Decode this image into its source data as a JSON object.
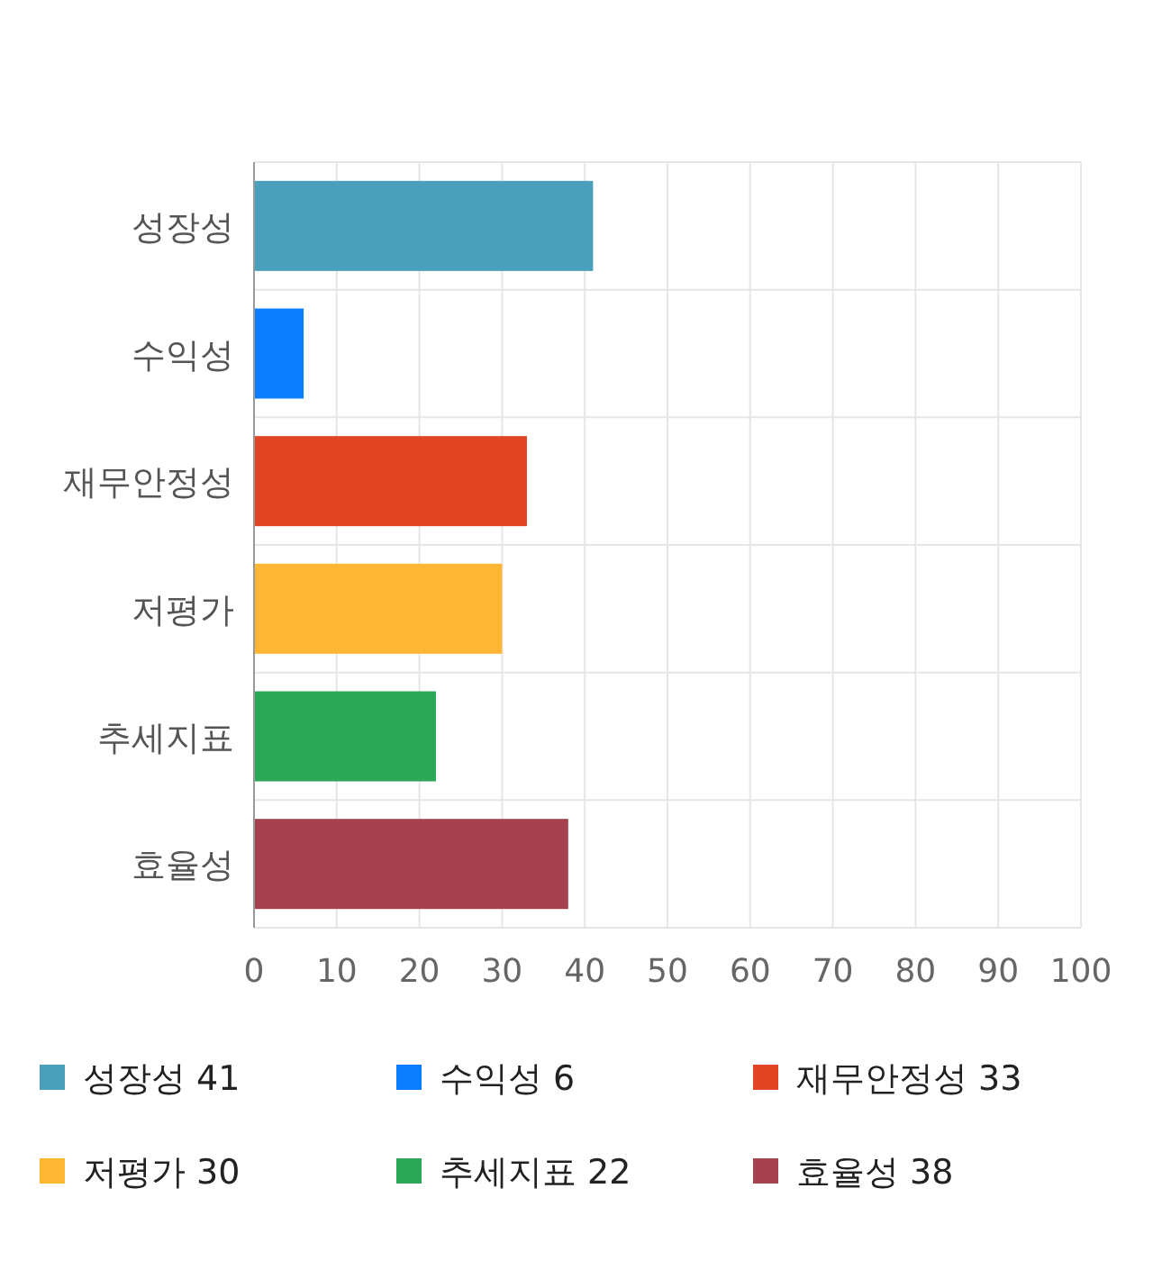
{
  "chart_data": {
    "type": "bar",
    "orientation": "horizontal",
    "stacked": true,
    "categories": [
      "성장성",
      "수익성",
      "재무안정성",
      "저평가",
      "추세지표",
      "효율성"
    ],
    "series": [
      {
        "name": "성장성 41",
        "color": "#4aa0bb",
        "values": [
          41,
          null,
          null,
          null,
          null,
          null
        ]
      },
      {
        "name": "수익성 6",
        "color": "#0a7cff",
        "values": [
          null,
          6,
          null,
          null,
          null,
          null
        ]
      },
      {
        "name": "재무안정성 33",
        "color": "#e24524",
        "values": [
          null,
          null,
          33,
          null,
          null,
          null
        ]
      },
      {
        "name": "저평가 30",
        "color": "#ffb733",
        "values": [
          null,
          null,
          null,
          30,
          null,
          null
        ]
      },
      {
        "name": "추세지표 22",
        "color": "#2aa858",
        "values": [
          null,
          null,
          null,
          null,
          22,
          null
        ]
      },
      {
        "name": "효율성 38",
        "color": "#a6424f",
        "values": [
          null,
          null,
          null,
          null,
          null,
          38
        ]
      }
    ],
    "xlim": [
      0,
      100
    ],
    "xticks": [
      0,
      10,
      20,
      30,
      40,
      50,
      60,
      70,
      80,
      90,
      100
    ],
    "grid": true,
    "legend": "bottom"
  }
}
